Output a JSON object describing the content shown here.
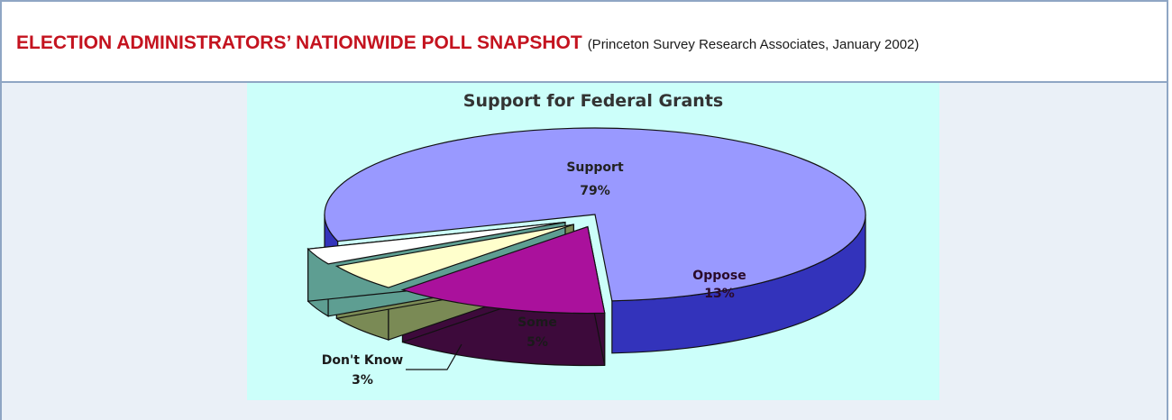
{
  "header": {
    "title": "ELECTION ADMINISTRATORS’ NATIONWIDE POLL SNAPSHOT",
    "source": "(Princeton Survey Research Associates, January 2002)"
  },
  "colors": {
    "title": "#c4131f",
    "panel_background": "#ccfffa",
    "frame_border": "#8fa6c4"
  },
  "chart_data": {
    "type": "pie",
    "title": "Support for Federal Grants",
    "three_d": true,
    "exploded": true,
    "slices": [
      {
        "label": "Support",
        "value": 79,
        "value_text": "79%",
        "top_color": "#9999ff",
        "side_color": "#3333bb"
      },
      {
        "label": "Oppose",
        "value": 13,
        "value_text": "13%",
        "top_color": "#aa119c",
        "side_color": "#3d0a3b"
      },
      {
        "label": "Some",
        "value": 5,
        "value_text": "5%",
        "top_color": "#ffffcc",
        "side_color": "#7a8a55"
      },
      {
        "label": "Don't Know",
        "value": 3,
        "value_text": "3%",
        "top_color": "#ffffff",
        "side_color": "#5e9e92"
      }
    ]
  }
}
